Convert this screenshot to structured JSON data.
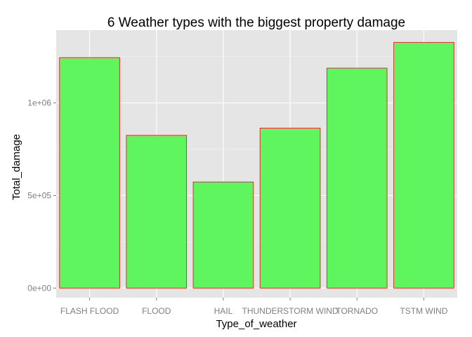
{
  "chart_data": {
    "type": "bar",
    "title": "6 Weather types with the biggest property damage",
    "xlabel": "Type_of_weather",
    "ylabel": "Total_damage",
    "categories": [
      "FLASH FLOOD",
      "FLOOD",
      "HAIL",
      "THUNDERSTORM WIND",
      "TORNADO",
      "TSTM WIND"
    ],
    "values": [
      1245000,
      825000,
      573000,
      864000,
      1188000,
      1327000
    ],
    "yticks": [
      0,
      500000,
      1000000
    ],
    "ytick_labels": [
      "0e+00",
      "5e+05",
      "1e+06"
    ],
    "ylim": [
      -52000,
      1393000
    ],
    "grid": true,
    "legend": "none",
    "colors": {
      "panel_background": "#e5e5e5",
      "grid_major": "#ffffff",
      "grid_minor": "#f2f2f2",
      "bar_fill": "#5ff55f",
      "bar_stroke": "#e0302a"
    }
  }
}
